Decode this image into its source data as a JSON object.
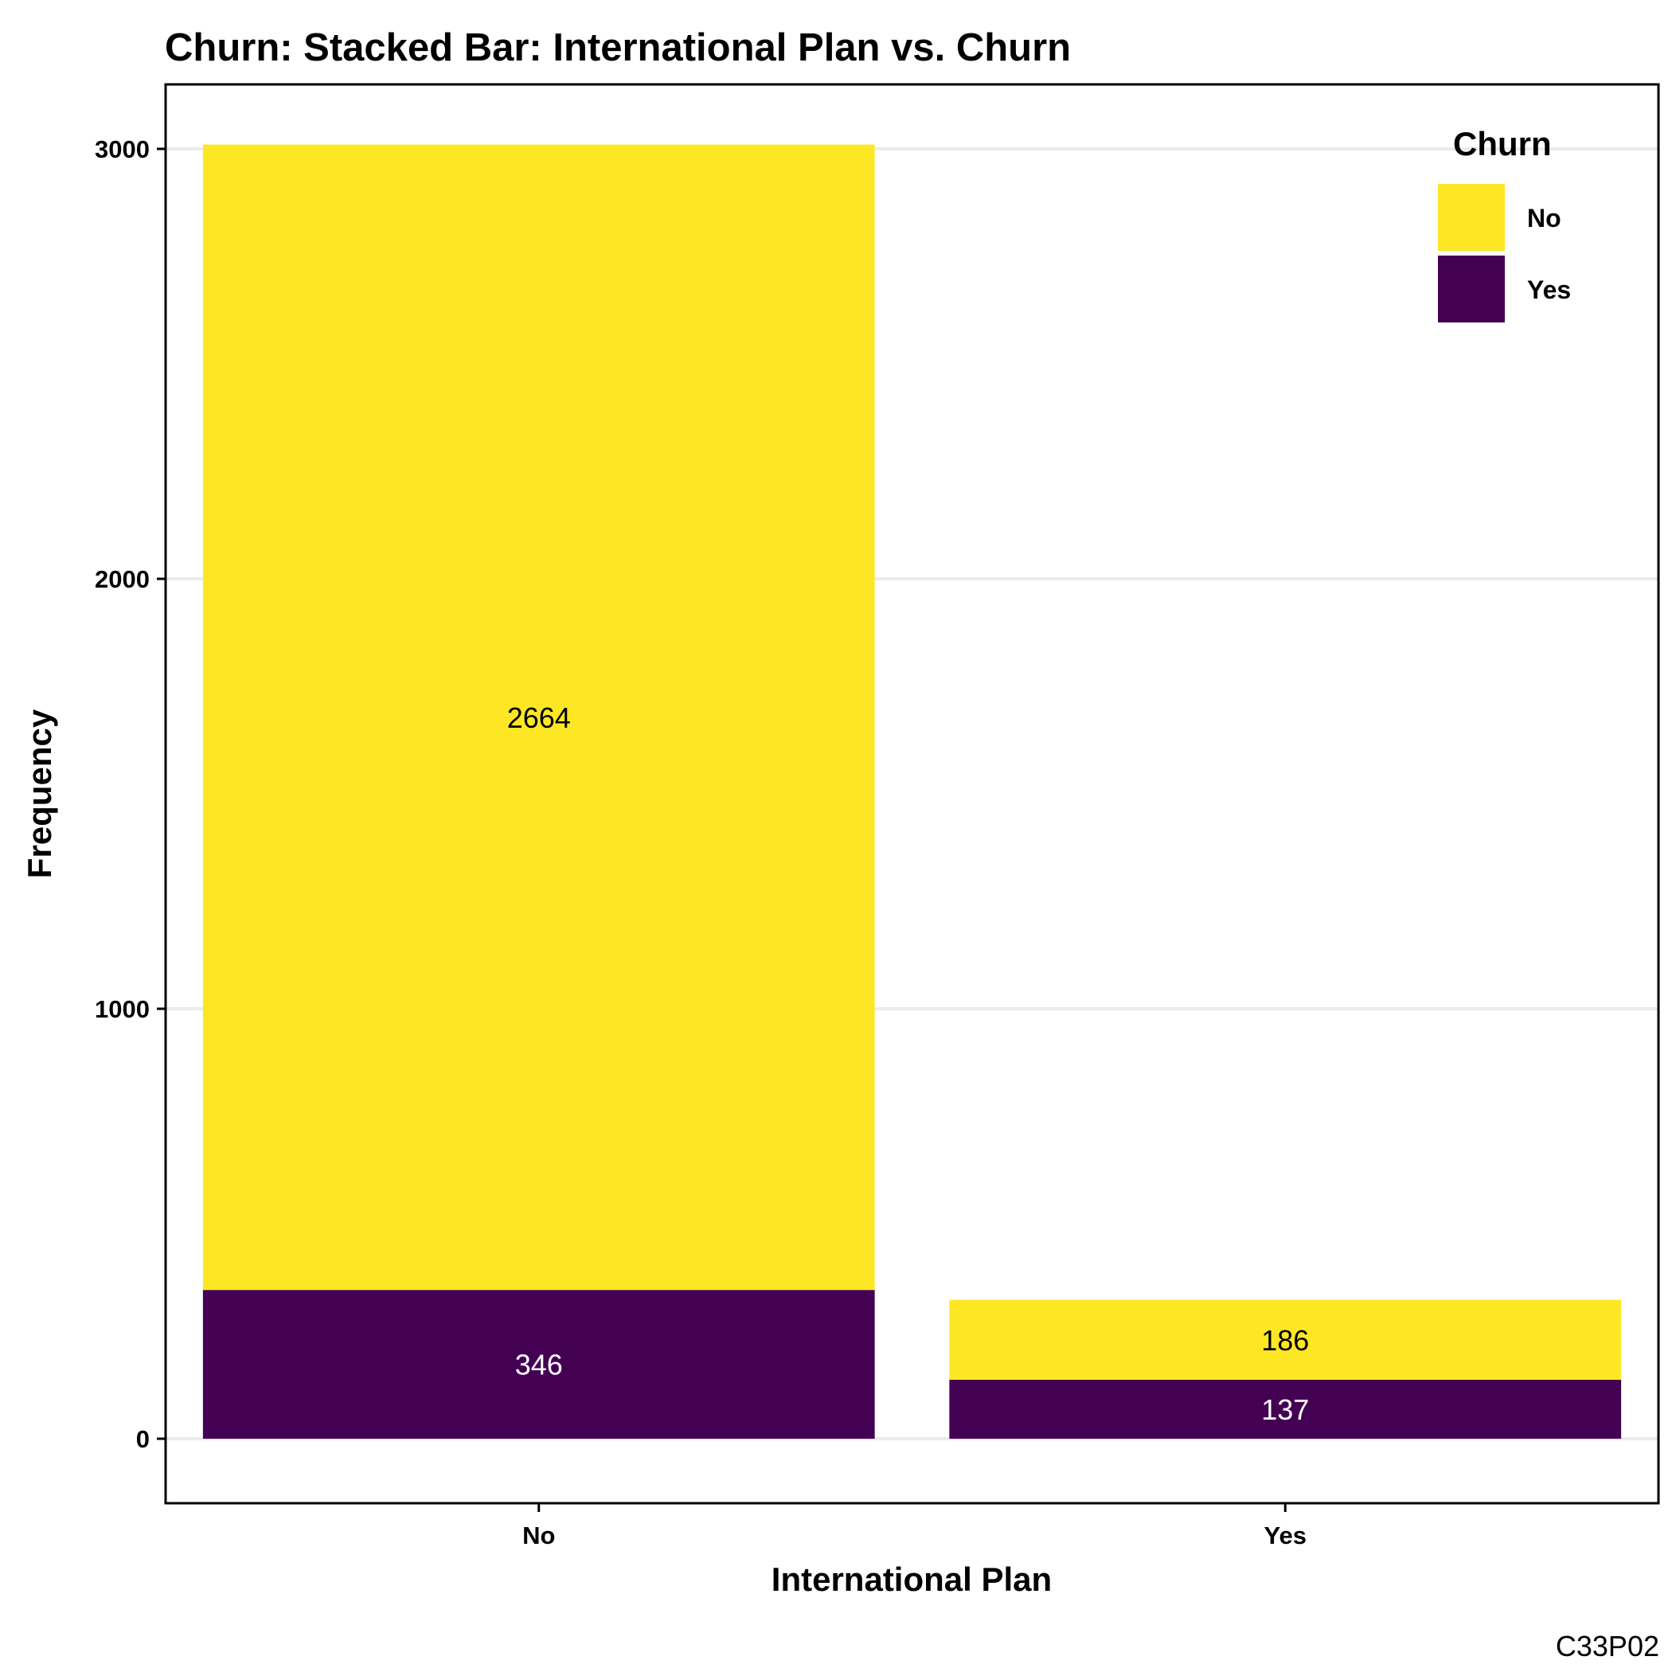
{
  "chart_data": {
    "type": "bar",
    "stacked": true,
    "title": "Churn: Stacked Bar: International Plan vs. Churn",
    "xlabel": "International Plan",
    "ylabel": "Frequency",
    "categories": [
      "No",
      "Yes"
    ],
    "series": [
      {
        "name": "Yes",
        "values": [
          346,
          137
        ],
        "color": "#440154"
      },
      {
        "name": "No",
        "values": [
          2664,
          186
        ],
        "color": "#FDE725"
      }
    ],
    "data_label_colors": {
      "No": "#000000",
      "Yes": "#ffffff"
    },
    "ylim": [
      -150,
      3150
    ],
    "yticks": [
      0,
      1000,
      2000,
      3000
    ],
    "grid": true,
    "legend": {
      "title": "Churn",
      "position": "top-right",
      "entries": [
        "No",
        "Yes"
      ]
    },
    "caption": "C33P02"
  }
}
